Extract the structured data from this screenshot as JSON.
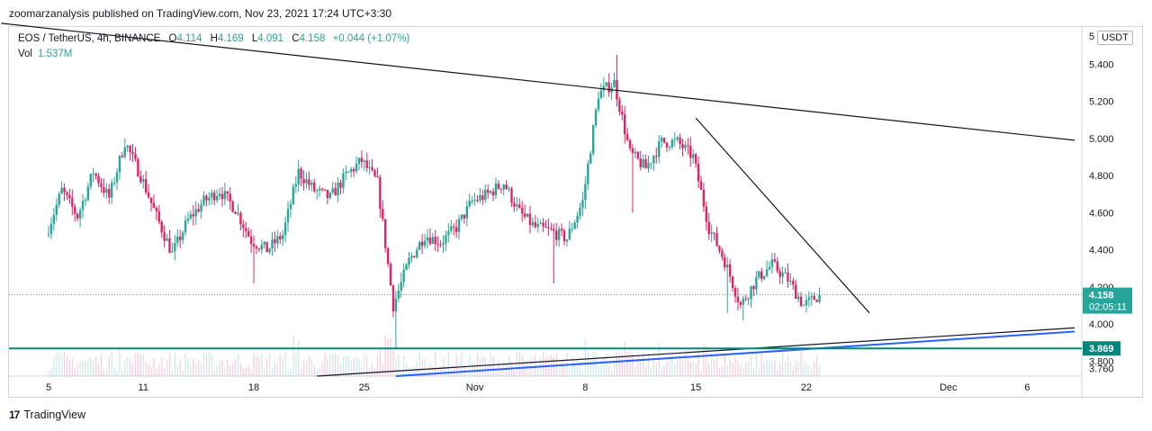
{
  "header": {
    "publisher_text": "zoomarzanalysis published on TradingView.com, Nov 23, 2021 17:24 UTC+3:30"
  },
  "legend": {
    "symbol": "EOS / TetherUS, 4h, BINANCE",
    "open_label": "O",
    "open": "4.114",
    "high_label": "H",
    "high": "4.169",
    "low_label": "L",
    "low": "4.091",
    "close_label": "C",
    "close": "4.158",
    "change": "+0.044 (+1.07%)",
    "volume_label": "Vol",
    "volume": "1.537M"
  },
  "currency": "USDT",
  "footer": {
    "logo_text": "17",
    "brand": "TradingView"
  },
  "colors": {
    "up": "#26a69a",
    "down": "#e91e63",
    "trendline": "#131722",
    "channel_blue": "#2962ff",
    "support": "#00897b",
    "price_label": "#26a69a"
  },
  "chart_data": {
    "type": "candlestick",
    "symbol": "EOS / TetherUS",
    "interval": "4h",
    "exchange": "BINANCE",
    "y_axis": {
      "ticks": [
        5.4,
        5.2,
        5.0,
        4.8,
        4.6,
        4.4,
        4.2,
        4.0,
        3.8,
        3.76
      ],
      "tick_labels": [
        "5.400",
        "5.200",
        "5.000",
        "4.800",
        "4.600",
        "4.400",
        "4.200",
        "4.000",
        "3.800",
        "3.760"
      ],
      "top_partial_label": "5",
      "range": [
        3.72,
        5.6
      ]
    },
    "x_axis": {
      "ticks": [
        "2021-10-05",
        "2021-10-11",
        "2021-10-18",
        "2021-10-25",
        "2021-11-01",
        "2021-11-08",
        "2021-11-15",
        "2021-11-22",
        "2021-12-01",
        "2021-12-06"
      ],
      "tick_labels": [
        "5",
        "11",
        "18",
        "25",
        "Nov",
        "8",
        "15",
        "22",
        "Dec",
        "6"
      ],
      "range": [
        "2021-10-05",
        "2021-12-09"
      ]
    },
    "current_price": {
      "value": 4.158,
      "label": "4.158",
      "countdown": "02:05:11"
    },
    "horizontal_line": {
      "value": 3.869,
      "label": "3.869"
    },
    "price_path": [
      [
        "2021-10-05",
        4.48
      ],
      [
        "2021-10-06",
        4.72
      ],
      [
        "2021-10-07",
        4.58
      ],
      [
        "2021-10-08",
        4.82
      ],
      [
        "2021-10-09",
        4.68
      ],
      [
        "2021-10-10",
        4.98
      ],
      [
        "2021-10-11",
        4.8
      ],
      [
        "2021-10-12",
        4.58
      ],
      [
        "2021-10-13",
        4.38
      ],
      [
        "2021-10-14",
        4.56
      ],
      [
        "2021-10-15",
        4.66
      ],
      [
        "2021-10-16",
        4.72
      ],
      [
        "2021-10-17",
        4.62
      ],
      [
        "2021-10-18",
        4.45
      ],
      [
        "2021-10-19",
        4.4
      ],
      [
        "2021-10-20",
        4.48
      ],
      [
        "2021-10-21",
        4.82
      ],
      [
        "2021-10-22",
        4.72
      ],
      [
        "2021-10-23",
        4.68
      ],
      [
        "2021-10-24",
        4.8
      ],
      [
        "2021-10-25",
        4.88
      ],
      [
        "2021-10-26",
        4.76
      ],
      [
        "2021-10-27",
        4.1
      ],
      [
        "2021-10-28",
        4.34
      ],
      [
        "2021-10-29",
        4.48
      ],
      [
        "2021-10-30",
        4.44
      ],
      [
        "2021-10-31",
        4.52
      ],
      [
        "2021-11-01",
        4.66
      ],
      [
        "2021-11-02",
        4.7
      ],
      [
        "2021-11-03",
        4.76
      ],
      [
        "2021-11-04",
        4.6
      ],
      [
        "2021-11-05",
        4.52
      ],
      [
        "2021-11-06",
        4.5
      ],
      [
        "2021-11-07",
        4.46
      ],
      [
        "2021-11-08",
        4.66
      ],
      [
        "2021-11-09",
        5.24
      ],
      [
        "2021-11-10",
        5.3
      ],
      [
        "2021-11-11",
        4.92
      ],
      [
        "2021-11-12",
        4.84
      ],
      [
        "2021-11-13",
        4.98
      ],
      [
        "2021-11-14",
        4.98
      ],
      [
        "2021-11-15",
        4.9
      ],
      [
        "2021-11-16",
        4.52
      ],
      [
        "2021-11-17",
        4.34
      ],
      [
        "2021-11-18",
        4.1
      ],
      [
        "2021-11-19",
        4.24
      ],
      [
        "2021-11-20",
        4.32
      ],
      [
        "2021-11-21",
        4.24
      ],
      [
        "2021-11-22",
        4.1
      ],
      [
        "2021-11-23",
        4.158
      ]
    ],
    "drawings": [
      {
        "type": "trendline",
        "color": "#131722",
        "points": [
          [
            "2021-10-02",
            5.62
          ],
          [
            "2021-12-09",
            4.99
          ]
        ]
      },
      {
        "type": "trendline",
        "color": "#131722",
        "points": [
          [
            "2021-11-15",
            5.11
          ],
          [
            "2021-11-26",
            4.06
          ]
        ]
      },
      {
        "type": "trendline",
        "color": "#131722",
        "points": [
          [
            "2021-10-22",
            3.72
          ],
          [
            "2021-12-09",
            3.98
          ]
        ]
      },
      {
        "type": "trendline",
        "color": "#2962ff",
        "points": [
          [
            "2021-10-27",
            3.72
          ],
          [
            "2021-12-09",
            3.96
          ]
        ]
      }
    ]
  }
}
